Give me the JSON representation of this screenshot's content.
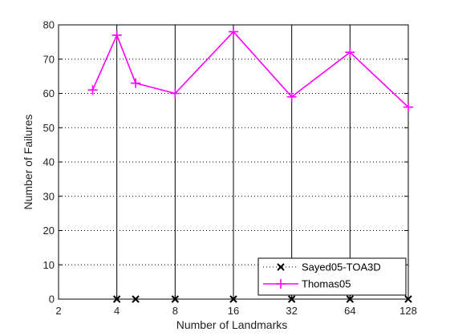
{
  "chart_data": {
    "type": "line",
    "title": "",
    "xlabel": "Number of Landmarks",
    "ylabel": "Number of Failures",
    "x_scale": "log2",
    "xlim": [
      2,
      128
    ],
    "ylim": [
      0,
      80
    ],
    "x_ticks": [
      2,
      4,
      8,
      16,
      32,
      64,
      128
    ],
    "y_ticks": [
      0,
      10,
      20,
      30,
      40,
      50,
      60,
      70,
      80
    ],
    "grid": "dotted",
    "legend_position": "bottom-right",
    "series": [
      {
        "name": "Sayed05-TOA3D",
        "color": "#000000",
        "line_style": "dotted",
        "marker": "x",
        "x": [
          4,
          5,
          8,
          16,
          32,
          64,
          128
        ],
        "y": [
          0,
          0,
          0,
          0,
          0,
          0,
          0
        ]
      },
      {
        "name": "Thomas05",
        "color": "#ff00ff",
        "line_style": "solid",
        "marker": "+",
        "x": [
          3,
          4,
          5,
          8,
          16,
          32,
          64,
          128
        ],
        "y": [
          61,
          77,
          63,
          60,
          78,
          59,
          72,
          56
        ]
      }
    ]
  }
}
